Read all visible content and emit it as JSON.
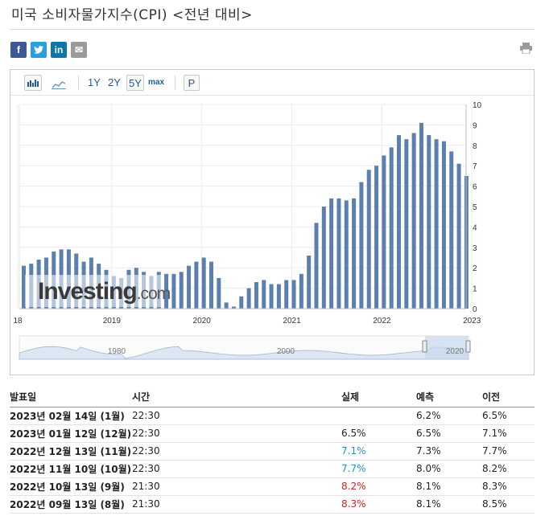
{
  "page": {
    "title": "미국 소비자물가지수(CPI) <전년 대비>"
  },
  "social": {
    "facebook": "f",
    "twitter": "t",
    "linkedin": "in",
    "email": "✉",
    "print_icon": "print-icon"
  },
  "toolbar": {
    "bar_icon": "bar-chart-icon",
    "line_icon": "line-chart-icon",
    "range_1y": "1Y",
    "range_2y": "2Y",
    "range_5y": "5Y",
    "range_max": "max",
    "popup": "P",
    "active_range": "5Y"
  },
  "watermark": {
    "brand": "Investing",
    "suffix": ".com"
  },
  "chart_data": {
    "type": "bar",
    "bar_color": "#5b7fae",
    "start": "2018-01",
    "interval": "month",
    "values": [
      2.1,
      2.2,
      2.4,
      2.5,
      2.8,
      2.9,
      2.9,
      2.7,
      2.3,
      2.5,
      2.2,
      1.9,
      1.6,
      1.5,
      1.9,
      2.0,
      1.8,
      1.6,
      1.8,
      1.7,
      1.7,
      1.8,
      2.1,
      2.3,
      2.5,
      2.3,
      1.5,
      0.3,
      0.1,
      0.6,
      1.0,
      1.3,
      1.4,
      1.2,
      1.2,
      1.4,
      1.4,
      1.7,
      2.6,
      4.2,
      5.0,
      5.4,
      5.4,
      5.3,
      5.4,
      6.2,
      6.8,
      7.0,
      7.5,
      7.9,
      8.5,
      8.3,
      8.6,
      9.1,
      8.5,
      8.3,
      8.2,
      7.7,
      7.1,
      6.5
    ],
    "x_ticks": [
      "18",
      "2019",
      "2020",
      "2021",
      "2022",
      "2023"
    ],
    "y_ticks": [
      "0",
      "1",
      "2",
      "3",
      "4",
      "5",
      "6",
      "7",
      "8",
      "9",
      "10"
    ],
    "ylim": [
      0,
      10
    ],
    "grid": true,
    "navigator_labels": [
      "1980",
      "2000",
      "2020"
    ]
  },
  "table": {
    "headers": {
      "release": "발표일",
      "time": "시간",
      "actual": "실제",
      "forecast": "예측",
      "previous": "이전"
    },
    "rows": [
      {
        "date": "2023년 02월 14일 (1월)",
        "time": "22:30",
        "actual": "",
        "forecast": "6.2%",
        "previous": "6.5%",
        "actual_color": "#222222"
      },
      {
        "date": "2023년 01월 12일 (12월)",
        "time": "22:30",
        "actual": "6.5%",
        "forecast": "6.5%",
        "previous": "7.1%",
        "actual_color": "#222222"
      },
      {
        "date": "2022년 12월 13일 (11월)",
        "time": "22:30",
        "actual": "7.1%",
        "forecast": "7.3%",
        "previous": "7.7%",
        "actual_color": "#2a8fbf"
      },
      {
        "date": "2022년 11월 10일 (10월)",
        "time": "22:30",
        "actual": "7.7%",
        "forecast": "8.0%",
        "previous": "8.2%",
        "actual_color": "#2a8fbf"
      },
      {
        "date": "2022년 10월 13일 (9월)",
        "time": "21:30",
        "actual": "8.2%",
        "forecast": "8.1%",
        "previous": "8.3%",
        "actual_color": "#cc2222"
      },
      {
        "date": "2022년 09월 13일 (8월)",
        "time": "21:30",
        "actual": "8.3%",
        "forecast": "8.1%",
        "previous": "8.5%",
        "actual_color": "#cc2222"
      }
    ]
  }
}
